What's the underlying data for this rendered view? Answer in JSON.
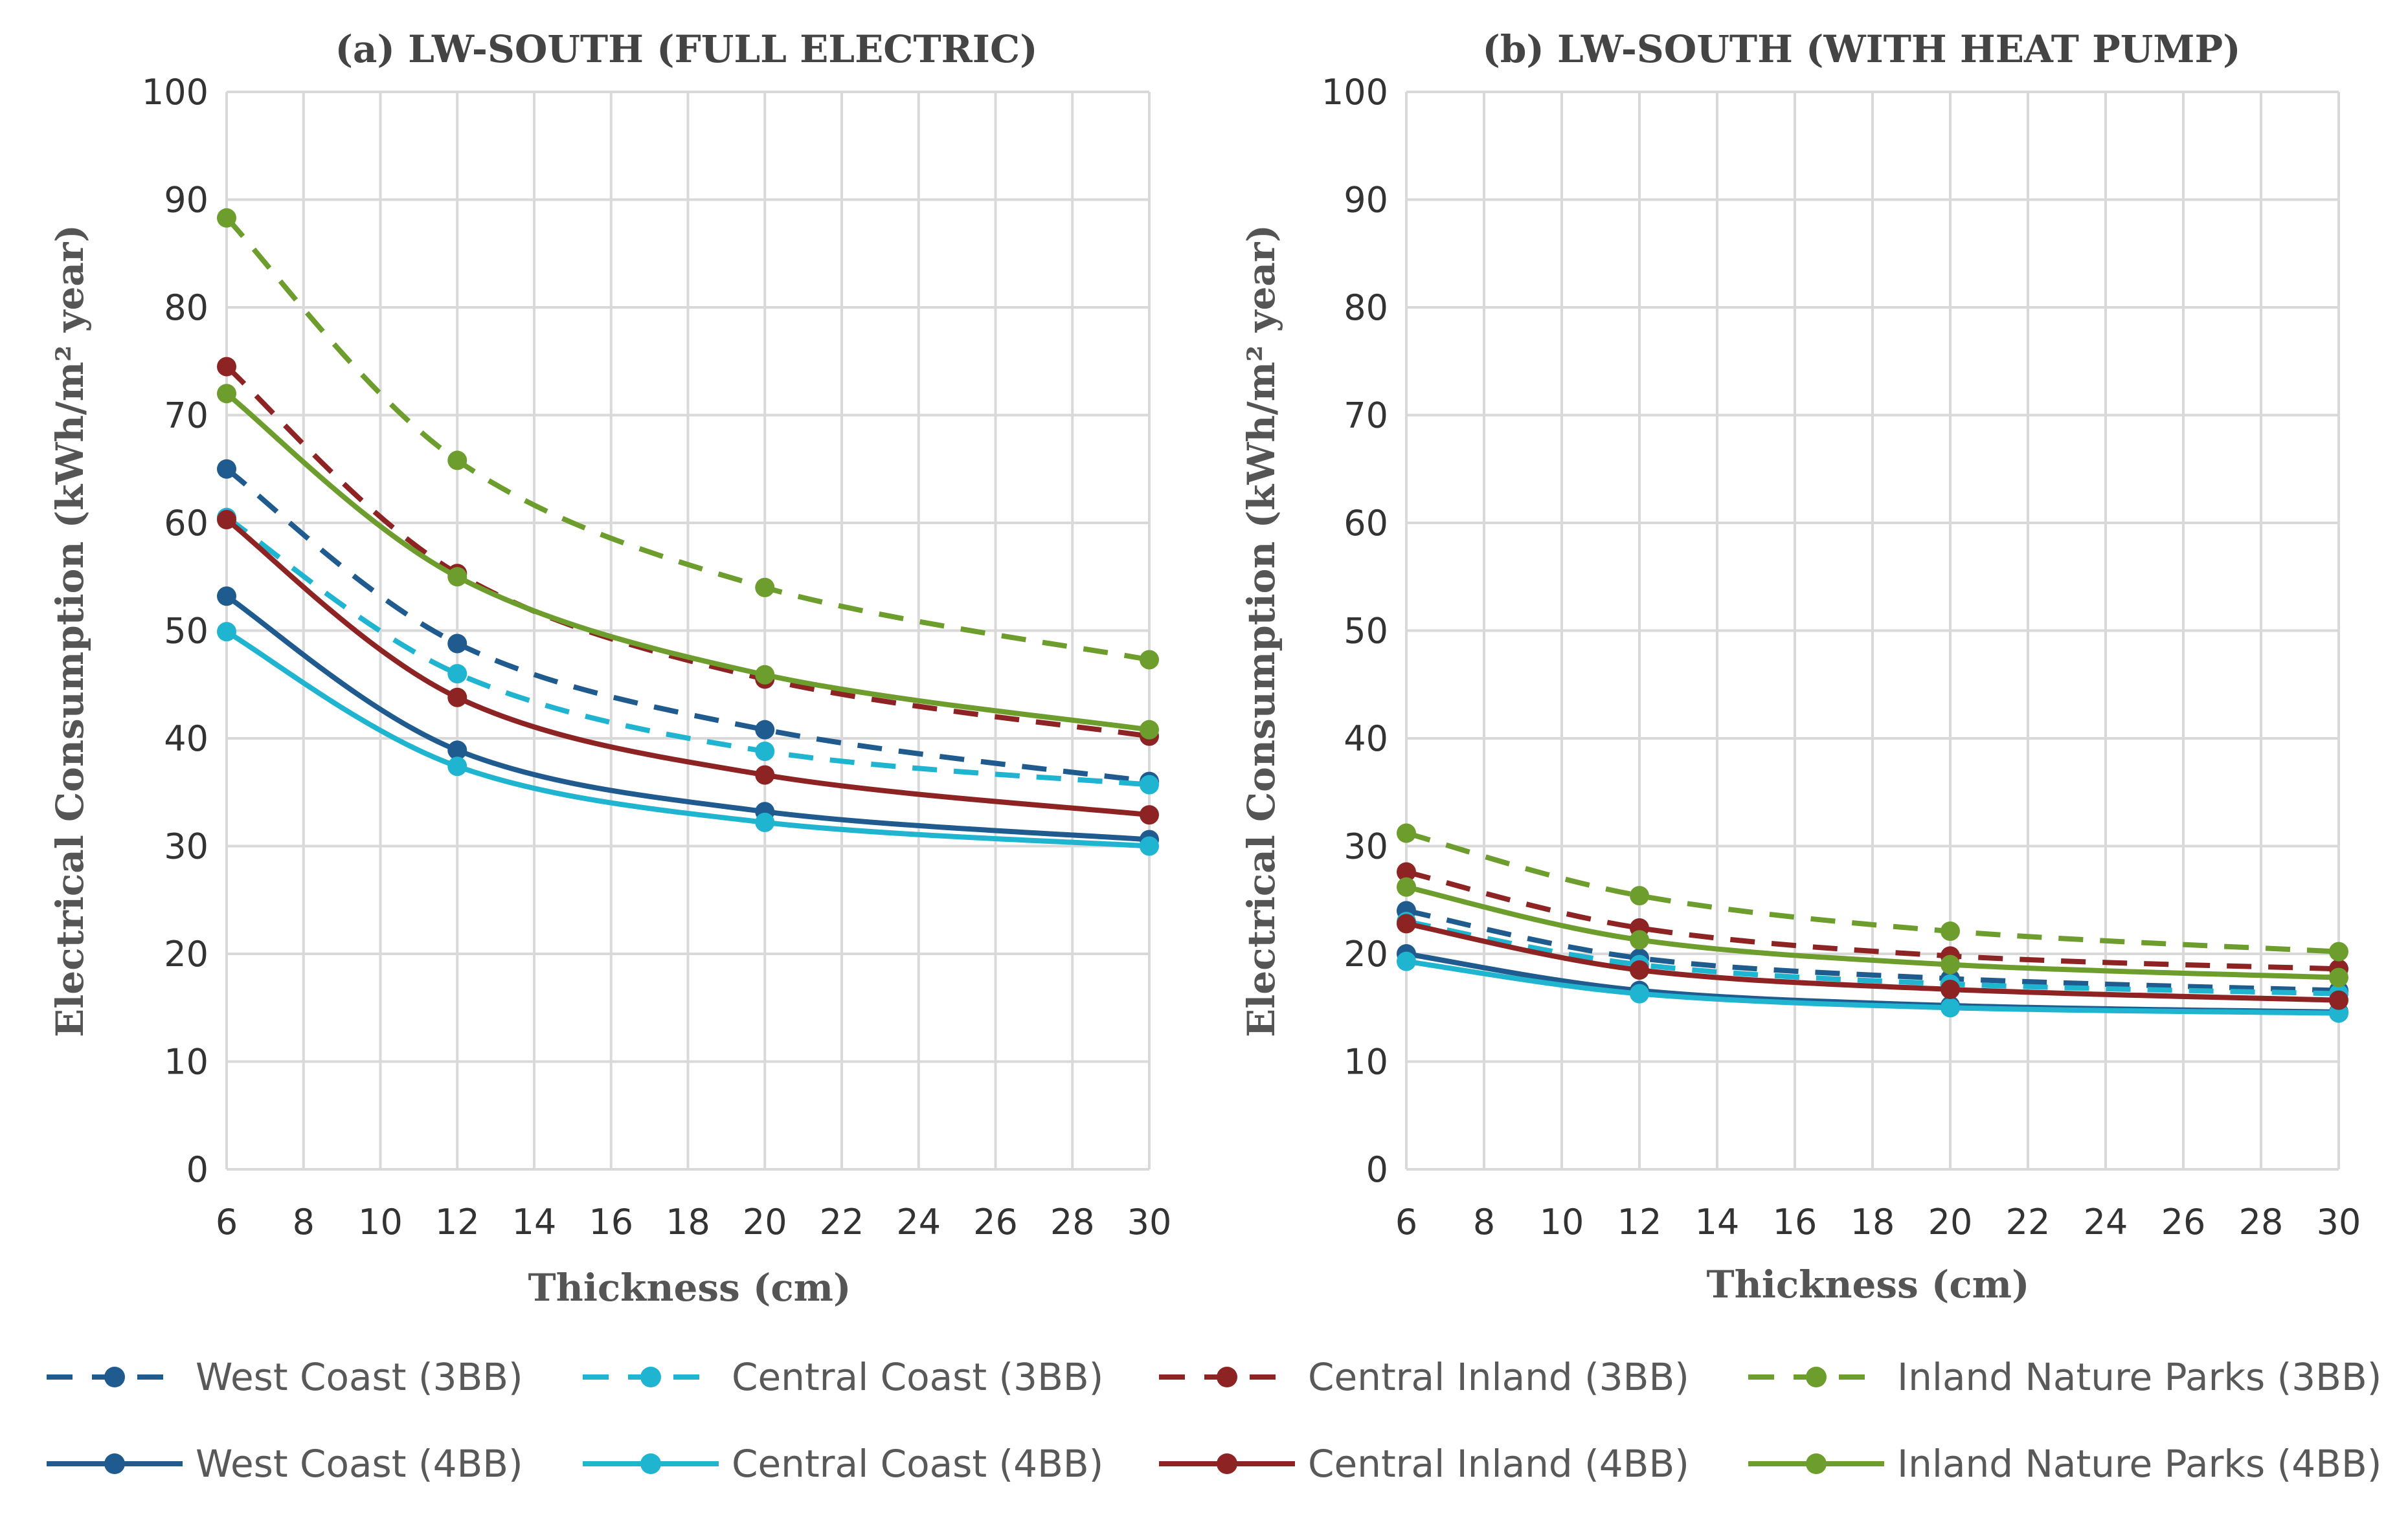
{
  "chart_data": [
    {
      "type": "line",
      "title": "(a) LW-SOUTH (FULL ELECTRIC)",
      "xlabel": "Thickness  (cm)",
      "ylabel": "Electrical  Consumption  (kWh/m² year)",
      "xlim": [
        6,
        30
      ],
      "ylim": [
        0,
        100
      ],
      "x_ticks": [
        "6",
        "8",
        "10",
        "12",
        "14",
        "16",
        "18",
        "20",
        "22",
        "24",
        "26",
        "28",
        "30"
      ],
      "y_ticks": [
        "0",
        "10",
        "20",
        "30",
        "40",
        "50",
        "60",
        "70",
        "80",
        "90",
        "100"
      ],
      "grid": true,
      "x": [
        6,
        12,
        20,
        30
      ],
      "series": [
        {
          "name": "West Coast (3BB)",
          "values": [
            65.0,
            48.8,
            40.8,
            36.0
          ],
          "color": "#1f5b8f",
          "dash": true
        },
        {
          "name": "Central Coast (3BB)",
          "values": [
            60.5,
            46.0,
            38.8,
            35.7
          ],
          "color": "#1fb5d0",
          "dash": true
        },
        {
          "name": "Central Inland (3BB)",
          "values": [
            74.5,
            55.3,
            45.5,
            40.2
          ],
          "color": "#8e2323",
          "dash": true
        },
        {
          "name": "Inland Nature Parks (3BB)",
          "values": [
            88.3,
            65.8,
            54.0,
            47.3
          ],
          "color": "#6d9d2c",
          "dash": true
        },
        {
          "name": "West Coast (4BB)",
          "values": [
            53.2,
            38.9,
            33.2,
            30.6
          ],
          "color": "#1f5b8f",
          "dash": false
        },
        {
          "name": "Central Coast (4BB)",
          "values": [
            49.9,
            37.4,
            32.2,
            30.0
          ],
          "color": "#1fb5d0",
          "dash": false
        },
        {
          "name": "Central Inland (4BB)",
          "values": [
            60.3,
            43.8,
            36.6,
            32.9
          ],
          "color": "#8e2323",
          "dash": false
        },
        {
          "name": "Inland Nature Parks (4BB)",
          "values": [
            72.0,
            55.0,
            45.9,
            40.8
          ],
          "color": "#6d9d2c",
          "dash": false
        }
      ]
    },
    {
      "type": "line",
      "title": "(b) LW-SOUTH (WITH HEAT PUMP)",
      "xlabel": "Thickness  (cm)",
      "ylabel": "Electrical  Consumption  (kWh/m² year)",
      "xlim": [
        6,
        30
      ],
      "ylim": [
        0,
        100
      ],
      "x_ticks": [
        "6",
        "8",
        "10",
        "12",
        "14",
        "16",
        "18",
        "20",
        "22",
        "24",
        "26",
        "28",
        "30"
      ],
      "y_ticks": [
        "0",
        "10",
        "20",
        "30",
        "40",
        "50",
        "60",
        "70",
        "80",
        "90",
        "100"
      ],
      "grid": true,
      "x": [
        6,
        12,
        20,
        30
      ],
      "series": [
        {
          "name": "West Coast (3BB)",
          "values": [
            24.0,
            19.6,
            17.7,
            16.6
          ],
          "color": "#1f5b8f",
          "dash": true
        },
        {
          "name": "Central Coast (3BB)",
          "values": [
            23.0,
            19.0,
            17.2,
            16.3
          ],
          "color": "#1fb5d0",
          "dash": true
        },
        {
          "name": "Central Inland (3BB)",
          "values": [
            27.6,
            22.4,
            19.8,
            18.6
          ],
          "color": "#8e2323",
          "dash": true
        },
        {
          "name": "Inland Nature Parks (3BB)",
          "values": [
            31.2,
            25.4,
            22.1,
            20.2
          ],
          "color": "#6d9d2c",
          "dash": true
        },
        {
          "name": "West Coast (4BB)",
          "values": [
            20.0,
            16.6,
            15.2,
            14.6
          ],
          "color": "#1f5b8f",
          "dash": false
        },
        {
          "name": "Central Coast (4BB)",
          "values": [
            19.3,
            16.3,
            15.0,
            14.5
          ],
          "color": "#1fb5d0",
          "dash": false
        },
        {
          "name": "Central Inland (4BB)",
          "values": [
            22.8,
            18.5,
            16.7,
            15.7
          ],
          "color": "#8e2323",
          "dash": false
        },
        {
          "name": "Inland Nature Parks (4BB)",
          "values": [
            26.2,
            21.3,
            19.0,
            17.8
          ],
          "color": "#6d9d2c",
          "dash": false
        }
      ]
    }
  ],
  "legend": {
    "placement": "bottom",
    "entries": [
      "West Coast (3BB)",
      "Central Coast (3BB)",
      "Central Inland (3BB)",
      "Inland Nature Parks (3BB)",
      "West Coast (4BB)",
      "Central Coast (4BB)",
      "Central Inland (4BB)",
      "Inland Nature Parks (4BB)"
    ]
  }
}
